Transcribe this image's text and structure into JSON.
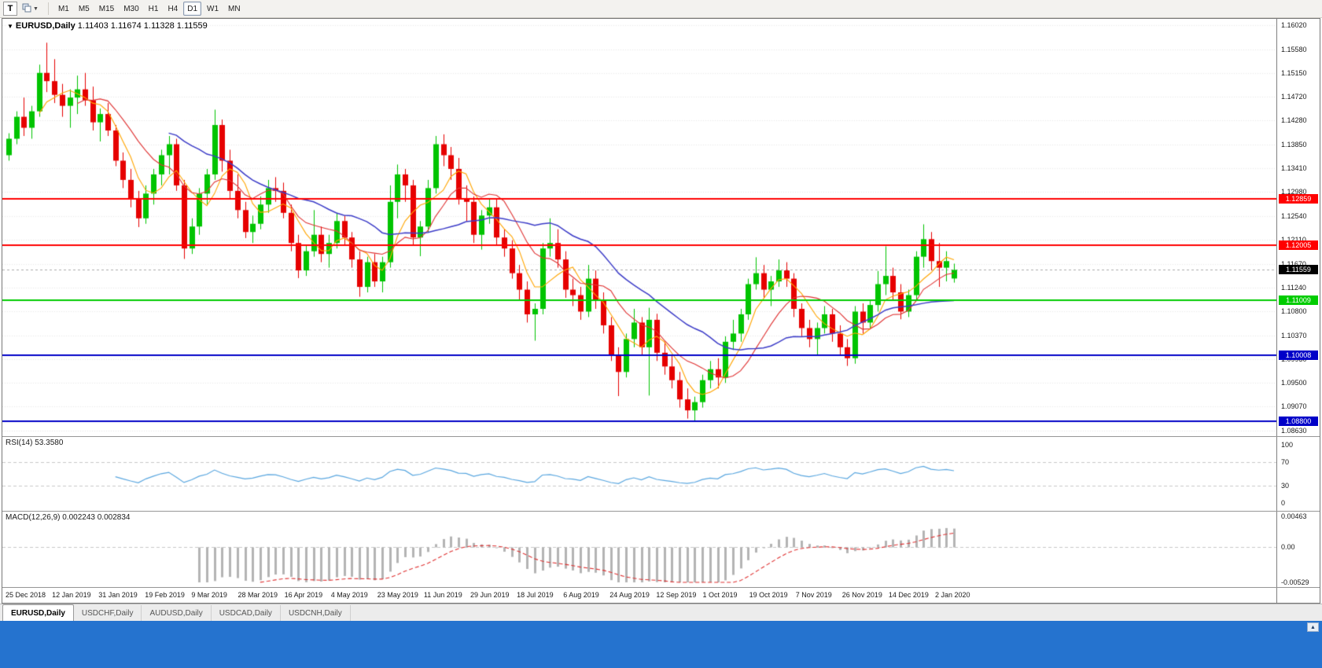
{
  "toolbar": {
    "templates_label": "T",
    "timeframes": [
      "M1",
      "M5",
      "M15",
      "M30",
      "H1",
      "H4",
      "D1",
      "W1",
      "MN"
    ],
    "active_timeframe": "D1"
  },
  "chart": {
    "title_symbol": "EURUSD,Daily",
    "title_ohlc": "1.11403 1.11674 1.11328 1.11559",
    "collapse_icon": "▼"
  },
  "tabs": [
    {
      "label": "EURUSD,Daily",
      "active": true
    },
    {
      "label": "USDCHF,Daily",
      "active": false
    },
    {
      "label": "AUDUSD,Daily",
      "active": false
    },
    {
      "label": "USDCAD,Daily",
      "active": false
    },
    {
      "label": "USDCNH,Daily",
      "active": false
    }
  ],
  "colors": {
    "bull": "#00C400",
    "bear": "#E60000",
    "grid": "#e9e9e9",
    "ma_fast": "#FFA500",
    "ma_mid": "#E03232",
    "ma_slow": "#3C3CC8",
    "rsi_line": "#5AA7E0",
    "macd_hist": "#B4B4B4",
    "macd_signal": "#E03232",
    "current_badge": "#000000",
    "status_strip": "#2573CF"
  },
  "chart_data": [
    {
      "type": "candlestick",
      "title": "EURUSD,Daily",
      "current_price": 1.11559,
      "y_ticks": [
        1.1602,
        1.1558,
        1.1515,
        1.1472,
        1.1428,
        1.1385,
        1.1341,
        1.1298,
        1.1254,
        1.1211,
        1.1167,
        1.1124,
        1.108,
        1.1037,
        1.0993,
        1.095,
        1.0907,
        1.0863
      ],
      "x_labels": [
        "25 Dec 2018",
        "12 Jan 2019",
        "31 Jan 2019",
        "19 Feb 2019",
        "9 Mar 2019",
        "28 Mar 2019",
        "16 Apr 2019",
        "4 May 2019",
        "23 May 2019",
        "11 Jun 2019",
        "29 Jun 2019",
        "18 Jul 2019",
        "6 Aug 2019",
        "24 Aug 2019",
        "12 Sep 2019",
        "1 Oct 2019",
        "19 Oct 2019",
        "7 Nov 2019",
        "26 Nov 2019",
        "14 Dec 2019",
        "2 Jan 2020"
      ],
      "hlines": [
        {
          "value": 1.12859,
          "color": "#FF0000",
          "width": 2
        },
        {
          "value": 1.12005,
          "color": "#FF0000",
          "width": 2
        },
        {
          "value": 1.11009,
          "color": "#00CC00",
          "width": 2
        },
        {
          "value": 1.10008,
          "color": "#0000C8",
          "width": 2
        },
        {
          "value": 1.088,
          "color": "#0000C8",
          "width": 2
        }
      ],
      "moving_averages": [
        {
          "period": 5,
          "color": "#FFA500"
        },
        {
          "period": 10,
          "color": "#E03232"
        },
        {
          "period": 22,
          "color": "#3C3CC8"
        }
      ],
      "ohlc": [
        [
          1.1365,
          1.1405,
          1.1355,
          1.1395
        ],
        [
          1.1395,
          1.1445,
          1.1385,
          1.1435
        ],
        [
          1.1435,
          1.147,
          1.14,
          1.1415
        ],
        [
          1.1415,
          1.1455,
          1.1395,
          1.1445
        ],
        [
          1.1445,
          1.153,
          1.1435,
          1.1515
        ],
        [
          1.1515,
          1.157,
          1.148,
          1.15
        ],
        [
          1.15,
          1.154,
          1.146,
          1.1475
        ],
        [
          1.1475,
          1.1495,
          1.1435,
          1.1455
        ],
        [
          1.1455,
          1.1485,
          1.1415,
          1.147
        ],
        [
          1.147,
          1.151,
          1.144,
          1.1485
        ],
        [
          1.1485,
          1.1515,
          1.1455,
          1.1465
        ],
        [
          1.1465,
          1.149,
          1.141,
          1.1425
        ],
        [
          1.1425,
          1.145,
          1.139,
          1.144
        ],
        [
          1.144,
          1.146,
          1.14,
          1.141
        ],
        [
          1.141,
          1.142,
          1.1345,
          1.1355
        ],
        [
          1.1355,
          1.137,
          1.1305,
          1.132
        ],
        [
          1.132,
          1.134,
          1.127,
          1.1285
        ],
        [
          1.1285,
          1.13,
          1.1234,
          1.125
        ],
        [
          1.125,
          1.131,
          1.124,
          1.1295
        ],
        [
          1.1295,
          1.134,
          1.1275,
          1.133
        ],
        [
          1.133,
          1.1375,
          1.131,
          1.1365
        ],
        [
          1.1365,
          1.14,
          1.133,
          1.1385
        ],
        [
          1.1385,
          1.1395,
          1.13,
          1.131
        ],
        [
          1.131,
          1.132,
          1.1176,
          1.1195
        ],
        [
          1.1195,
          1.125,
          1.1185,
          1.1235
        ],
        [
          1.1235,
          1.1305,
          1.122,
          1.1295
        ],
        [
          1.1295,
          1.134,
          1.1275,
          1.133
        ],
        [
          1.133,
          1.1448,
          1.132,
          1.142
        ],
        [
          1.142,
          1.143,
          1.1335,
          1.1355
        ],
        [
          1.1355,
          1.1375,
          1.1285,
          1.13
        ],
        [
          1.13,
          1.133,
          1.125,
          1.1265
        ],
        [
          1.1265,
          1.128,
          1.1214,
          1.1225
        ],
        [
          1.1225,
          1.1255,
          1.1205,
          1.124
        ],
        [
          1.124,
          1.129,
          1.123,
          1.1275
        ],
        [
          1.1275,
          1.132,
          1.126,
          1.1305
        ],
        [
          1.1305,
          1.1325,
          1.128,
          1.13
        ],
        [
          1.13,
          1.1315,
          1.125,
          1.126
        ],
        [
          1.126,
          1.1275,
          1.119,
          1.1205
        ],
        [
          1.1205,
          1.122,
          1.1141,
          1.1155
        ],
        [
          1.1155,
          1.12,
          1.1145,
          1.119
        ],
        [
          1.119,
          1.1265,
          1.118,
          1.122
        ],
        [
          1.122,
          1.1235,
          1.117,
          1.1185
        ],
        [
          1.1185,
          1.122,
          1.116,
          1.1205
        ],
        [
          1.1205,
          1.126,
          1.1195,
          1.1245
        ],
        [
          1.1245,
          1.1255,
          1.12,
          1.1215
        ],
        [
          1.1215,
          1.1225,
          1.116,
          1.1175
        ],
        [
          1.1175,
          1.119,
          1.1107,
          1.1125
        ],
        [
          1.1125,
          1.118,
          1.1115,
          1.117
        ],
        [
          1.117,
          1.1185,
          1.1125,
          1.1135
        ],
        [
          1.1135,
          1.118,
          1.1115,
          1.117
        ],
        [
          1.117,
          1.131,
          1.116,
          1.128
        ],
        [
          1.128,
          1.1348,
          1.125,
          1.133
        ],
        [
          1.133,
          1.134,
          1.128,
          1.131
        ],
        [
          1.131,
          1.132,
          1.12,
          1.1215
        ],
        [
          1.1215,
          1.1245,
          1.1181,
          1.1235
        ],
        [
          1.1235,
          1.132,
          1.1225,
          1.1305
        ],
        [
          1.1305,
          1.14,
          1.1295,
          1.1385
        ],
        [
          1.1385,
          1.1403,
          1.1345,
          1.1365
        ],
        [
          1.1365,
          1.138,
          1.132,
          1.134
        ],
        [
          1.134,
          1.136,
          1.1275,
          1.1285
        ],
        [
          1.1285,
          1.131,
          1.1245,
          1.128
        ],
        [
          1.128,
          1.129,
          1.1205,
          1.122
        ],
        [
          1.122,
          1.1265,
          1.1193,
          1.1255
        ],
        [
          1.1255,
          1.1285,
          1.124,
          1.127
        ],
        [
          1.127,
          1.1285,
          1.12,
          1.1215
        ],
        [
          1.1215,
          1.123,
          1.118,
          1.1195
        ],
        [
          1.1195,
          1.121,
          1.114,
          1.115
        ],
        [
          1.115,
          1.1165,
          1.1101,
          1.112
        ],
        [
          1.112,
          1.1135,
          1.106,
          1.1075
        ],
        [
          1.1075,
          1.1095,
          1.1027,
          1.1085
        ],
        [
          1.1085,
          1.1205,
          1.1075,
          1.1195
        ],
        [
          1.1195,
          1.125,
          1.118,
          1.1205
        ],
        [
          1.1205,
          1.123,
          1.116,
          1.1175
        ],
        [
          1.1175,
          1.119,
          1.1105,
          1.112
        ],
        [
          1.112,
          1.114,
          1.109,
          1.111
        ],
        [
          1.111,
          1.1125,
          1.1065,
          1.108
        ],
        [
          1.108,
          1.1165,
          1.107,
          1.114
        ],
        [
          1.114,
          1.1155,
          1.1085,
          1.11
        ],
        [
          1.11,
          1.1115,
          1.104,
          1.1055
        ],
        [
          1.1055,
          1.107,
          1.099,
          1.1
        ],
        [
          1.1,
          1.1015,
          1.0926,
          1.097
        ],
        [
          1.097,
          1.104,
          1.096,
          1.103
        ],
        [
          1.103,
          1.1085,
          1.1015,
          1.106
        ],
        [
          1.106,
          1.107,
          1.1,
          1.1015
        ],
        [
          1.1015,
          1.1087,
          1.0927,
          1.1065
        ],
        [
          1.1065,
          1.1076,
          1.099,
          1.1005
        ],
        [
          1.1005,
          1.1025,
          1.0965,
          1.098
        ],
        [
          1.098,
          1.1,
          1.094,
          1.0955
        ],
        [
          1.0955,
          1.097,
          1.0905,
          1.092
        ],
        [
          1.092,
          1.094,
          1.0885,
          1.09
        ],
        [
          1.09,
          1.0925,
          1.0879,
          1.0915
        ],
        [
          1.0915,
          1.0965,
          1.0905,
          1.0955
        ],
        [
          1.0955,
          1.099,
          1.094,
          1.0975
        ],
        [
          1.0975,
          1.0995,
          1.094,
          1.096
        ],
        [
          1.096,
          1.1035,
          1.095,
          1.1025
        ],
        [
          1.1025,
          1.1065,
          1.101,
          1.104
        ],
        [
          1.104,
          1.1085,
          1.1025,
          1.1075
        ],
        [
          1.1075,
          1.114,
          1.1065,
          1.113
        ],
        [
          1.113,
          1.1179,
          1.112,
          1.115
        ],
        [
          1.115,
          1.1165,
          1.1105,
          1.112
        ],
        [
          1.112,
          1.1145,
          1.109,
          1.1135
        ],
        [
          1.1135,
          1.1175,
          1.1125,
          1.1155
        ],
        [
          1.1155,
          1.117,
          1.1125,
          1.114
        ],
        [
          1.114,
          1.115,
          1.107,
          1.1085
        ],
        [
          1.1085,
          1.1095,
          1.1035,
          1.105
        ],
        [
          1.105,
          1.1065,
          1.1015,
          1.103
        ],
        [
          1.103,
          1.106,
          1.1,
          1.105
        ],
        [
          1.105,
          1.109,
          1.104,
          1.1075
        ],
        [
          1.1075,
          1.1085,
          1.1025,
          1.104
        ],
        [
          1.104,
          1.1055,
          1.1,
          1.1015
        ],
        [
          1.1015,
          1.103,
          1.0981,
          1.0995
        ],
        [
          1.0995,
          1.109,
          1.0985,
          1.108
        ],
        [
          1.108,
          1.1095,
          1.104,
          1.106
        ],
        [
          1.106,
          1.11,
          1.105,
          1.1092
        ],
        [
          1.1092,
          1.1154,
          1.108,
          1.113
        ],
        [
          1.113,
          1.1199,
          1.111,
          1.1145
        ],
        [
          1.1145,
          1.116,
          1.11,
          1.1115
        ],
        [
          1.1115,
          1.113,
          1.1066,
          1.108
        ],
        [
          1.108,
          1.112,
          1.107,
          1.111
        ],
        [
          1.111,
          1.119,
          1.11,
          1.118
        ],
        [
          1.118,
          1.1239,
          1.116,
          1.1212
        ],
        [
          1.1212,
          1.1225,
          1.1155,
          1.1172
        ],
        [
          1.1172,
          1.1205,
          1.1125,
          1.116
        ],
        [
          1.116,
          1.119,
          1.1135,
          1.1172
        ],
        [
          1.11403,
          1.11674,
          1.11328,
          1.11559
        ]
      ]
    },
    {
      "type": "line",
      "indicator": "RSI",
      "label": "RSI(14)",
      "value": "53.3580",
      "period": 14,
      "axis_labels": [
        100,
        70,
        30,
        0
      ],
      "dashed_levels": [
        70,
        30
      ],
      "color": "#5AA7E0"
    },
    {
      "type": "histogram",
      "indicator": "MACD",
      "label": "MACD(12,26,9)",
      "values": "0.002243 0.002834",
      "params": [
        12,
        26,
        9
      ],
      "axis_labels": [
        "0.00463",
        "0.00",
        "-0.00529"
      ],
      "range": [
        -0.00529,
        0.00463
      ],
      "histogram_color": "#B4B4B4",
      "signal_color": "#E03232"
    }
  ]
}
